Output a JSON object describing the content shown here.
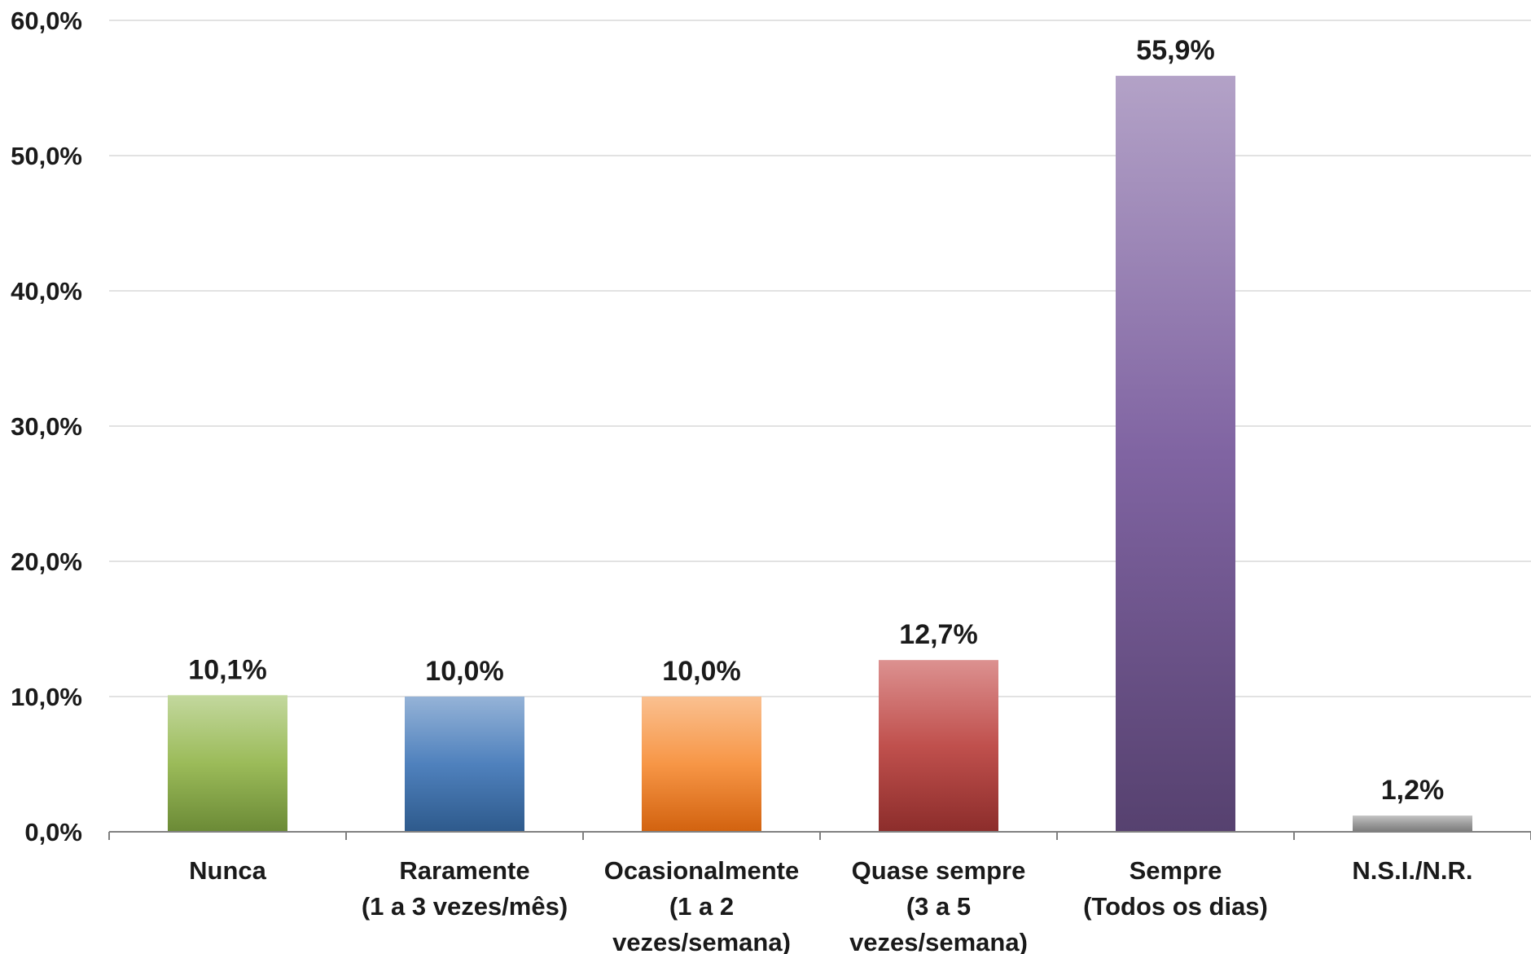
{
  "chart_data": {
    "type": "bar",
    "categories": [
      [
        "Nunca"
      ],
      [
        "Raramente",
        "(1 a 3 vezes/mês)"
      ],
      [
        "Ocasionalmente",
        "(1 a 2",
        "vezes/semana)"
      ],
      [
        "Quase sempre",
        "(3 a 5",
        "vezes/semana)"
      ],
      [
        "Sempre",
        "(Todos os dias)"
      ],
      [
        "N.S.I./N.R."
      ]
    ],
    "values": [
      10.1,
      10.0,
      10.0,
      12.7,
      55.9,
      1.2
    ],
    "value_labels": [
      "10,1%",
      "10,0%",
      "10,0%",
      "12,7%",
      "55,9%",
      "1,2%"
    ],
    "yticks": [
      0,
      10,
      20,
      30,
      40,
      50,
      60
    ],
    "ytick_labels": [
      "0,0%",
      "10,0%",
      "20,0%",
      "30,0%",
      "40,0%",
      "50,0%",
      "60,0%"
    ],
    "ylim": [
      0,
      60
    ],
    "grid": true,
    "legend": "none",
    "colors": [
      {
        "top": "#c3d89e",
        "mid": "#9bbb59",
        "bottom": "#6b8a36"
      },
      {
        "top": "#95b3d7",
        "mid": "#4f81bd",
        "bottom": "#2e5a8c"
      },
      {
        "top": "#fac090",
        "mid": "#f79646",
        "bottom": "#d2620f"
      },
      {
        "top": "#dc9190",
        "mid": "#c0504d",
        "bottom": "#8c2d2b"
      },
      {
        "top": "#b3a2c7",
        "mid": "#8064a2",
        "bottom": "#56416f"
      },
      {
        "top": "#c4c4c4",
        "mid": "#9c9c9c",
        "bottom": "#7a7a7a"
      }
    ]
  }
}
